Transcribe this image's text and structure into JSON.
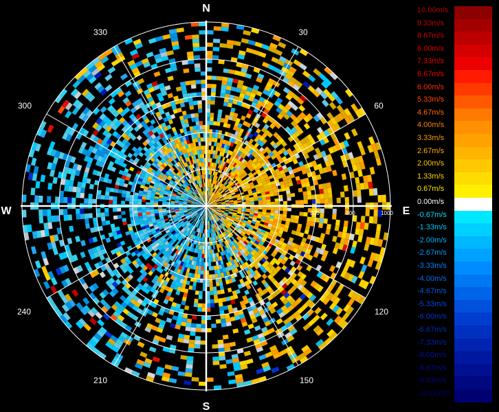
{
  "cardinals": {
    "north": "N",
    "east": "E",
    "south": "S",
    "west": "W"
  },
  "bearings": [
    "30",
    "60",
    "120",
    "150",
    "210",
    "240",
    "300",
    "330"
  ],
  "range_labels": [
    "800",
    "800",
    "1000"
  ],
  "colorbar": {
    "labels": [
      "10.00m/s",
      "9.33m/s",
      "8.67m/s",
      "8.00m/s",
      "7.33m/s",
      "6.67m/s",
      "6.00m/s",
      "5.33m/s",
      "4.67m/s",
      "4.00m/s",
      "3.33m/s",
      "2.67m/s",
      "2.00m/s",
      "1.33m/s",
      "0.67m/s",
      "0.00m/s",
      "-0.67m/s",
      "-1.33m/s",
      "-2.00m/s",
      "-2.67m/s",
      "-3.33m/s",
      "-4.00m/s",
      "-4.67m/s",
      "-5.33m/s",
      "-6.00m/s",
      "-6.67m/s",
      "-7.33m/s",
      "-8.00m/s",
      "-8.67m/s",
      "-9.33m/s",
      "-10.00m/s"
    ],
    "colors": [
      "#8c0000",
      "#a40000",
      "#bc0000",
      "#d40000",
      "#ec0000",
      "#ff1a00",
      "#ff3a00",
      "#ff5a00",
      "#ff7a00",
      "#ff9000",
      "#ffa200",
      "#ffb400",
      "#ffc800",
      "#ffdc00",
      "#fff000",
      "#ffffff",
      "#00e8ff",
      "#00d0ff",
      "#00b8ff",
      "#00a2ff",
      "#008cff",
      "#0078f4",
      "#0064e8",
      "#0050dc",
      "#003cd0",
      "#0030c0",
      "#0024b0",
      "#0018a0",
      "#001090",
      "#000880",
      "#000070"
    ],
    "label_colors": [
      "#b40000",
      "#c40000",
      "#d00000",
      "#dc0000",
      "#e40000",
      "#f00000",
      "#ff2a00",
      "#ff4a00",
      "#ff6a00",
      "#ff8400",
      "#ff9c00",
      "#ffb000",
      "#ffc400",
      "#ffd800",
      "#ffe800",
      "#ffffff",
      "#00e0ff",
      "#00c8ff",
      "#00b0ff",
      "#0098ff",
      "#0084ff",
      "#0070f0",
      "#005ce4",
      "#0048d8",
      "#0038cc",
      "#002cbc",
      "#0020ac",
      "#00149c",
      "#000c8c",
      "#00087c",
      "#00006c"
    ]
  }
}
